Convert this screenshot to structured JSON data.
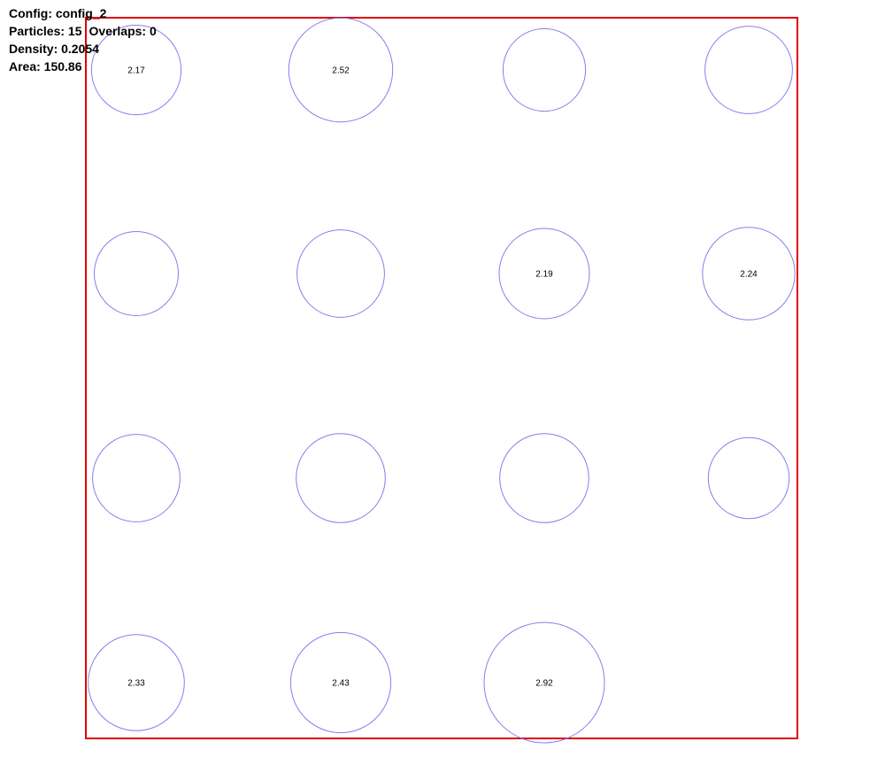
{
  "info": {
    "config_label": "Config: config_2",
    "particles_label": "Particles: 15",
    "overlaps_label": "Overlaps: 0",
    "density_label": "Density: 0.2054",
    "area_label": "Area: 150.86"
  },
  "colors": {
    "box": "#e00000",
    "particle": "#8080ee",
    "label": "#000000"
  },
  "particles": [
    {
      "row": 0,
      "col": 0,
      "radius": 2.17,
      "label": "2.17"
    },
    {
      "row": 0,
      "col": 1,
      "radius": 2.52,
      "label": "2.52"
    },
    {
      "row": 0,
      "col": 2,
      "radius": 2.0,
      "label": ""
    },
    {
      "row": 0,
      "col": 3,
      "radius": 2.12,
      "label": ""
    },
    {
      "row": 1,
      "col": 0,
      "radius": 2.04,
      "label": ""
    },
    {
      "row": 1,
      "col": 1,
      "radius": 2.12,
      "label": ""
    },
    {
      "row": 1,
      "col": 2,
      "radius": 2.19,
      "label": "2.19"
    },
    {
      "row": 1,
      "col": 3,
      "radius": 2.24,
      "label": "2.24"
    },
    {
      "row": 2,
      "col": 0,
      "radius": 2.12,
      "label": ""
    },
    {
      "row": 2,
      "col": 1,
      "radius": 2.16,
      "label": ""
    },
    {
      "row": 2,
      "col": 2,
      "radius": 2.16,
      "label": ""
    },
    {
      "row": 2,
      "col": 3,
      "radius": 1.96,
      "label": ""
    },
    {
      "row": 3,
      "col": 0,
      "radius": 2.33,
      "label": "2.33"
    },
    {
      "row": 3,
      "col": 1,
      "radius": 2.43,
      "label": "2.43"
    },
    {
      "row": 3,
      "col": 2,
      "radius": 2.92,
      "label": "2.92"
    }
  ]
}
